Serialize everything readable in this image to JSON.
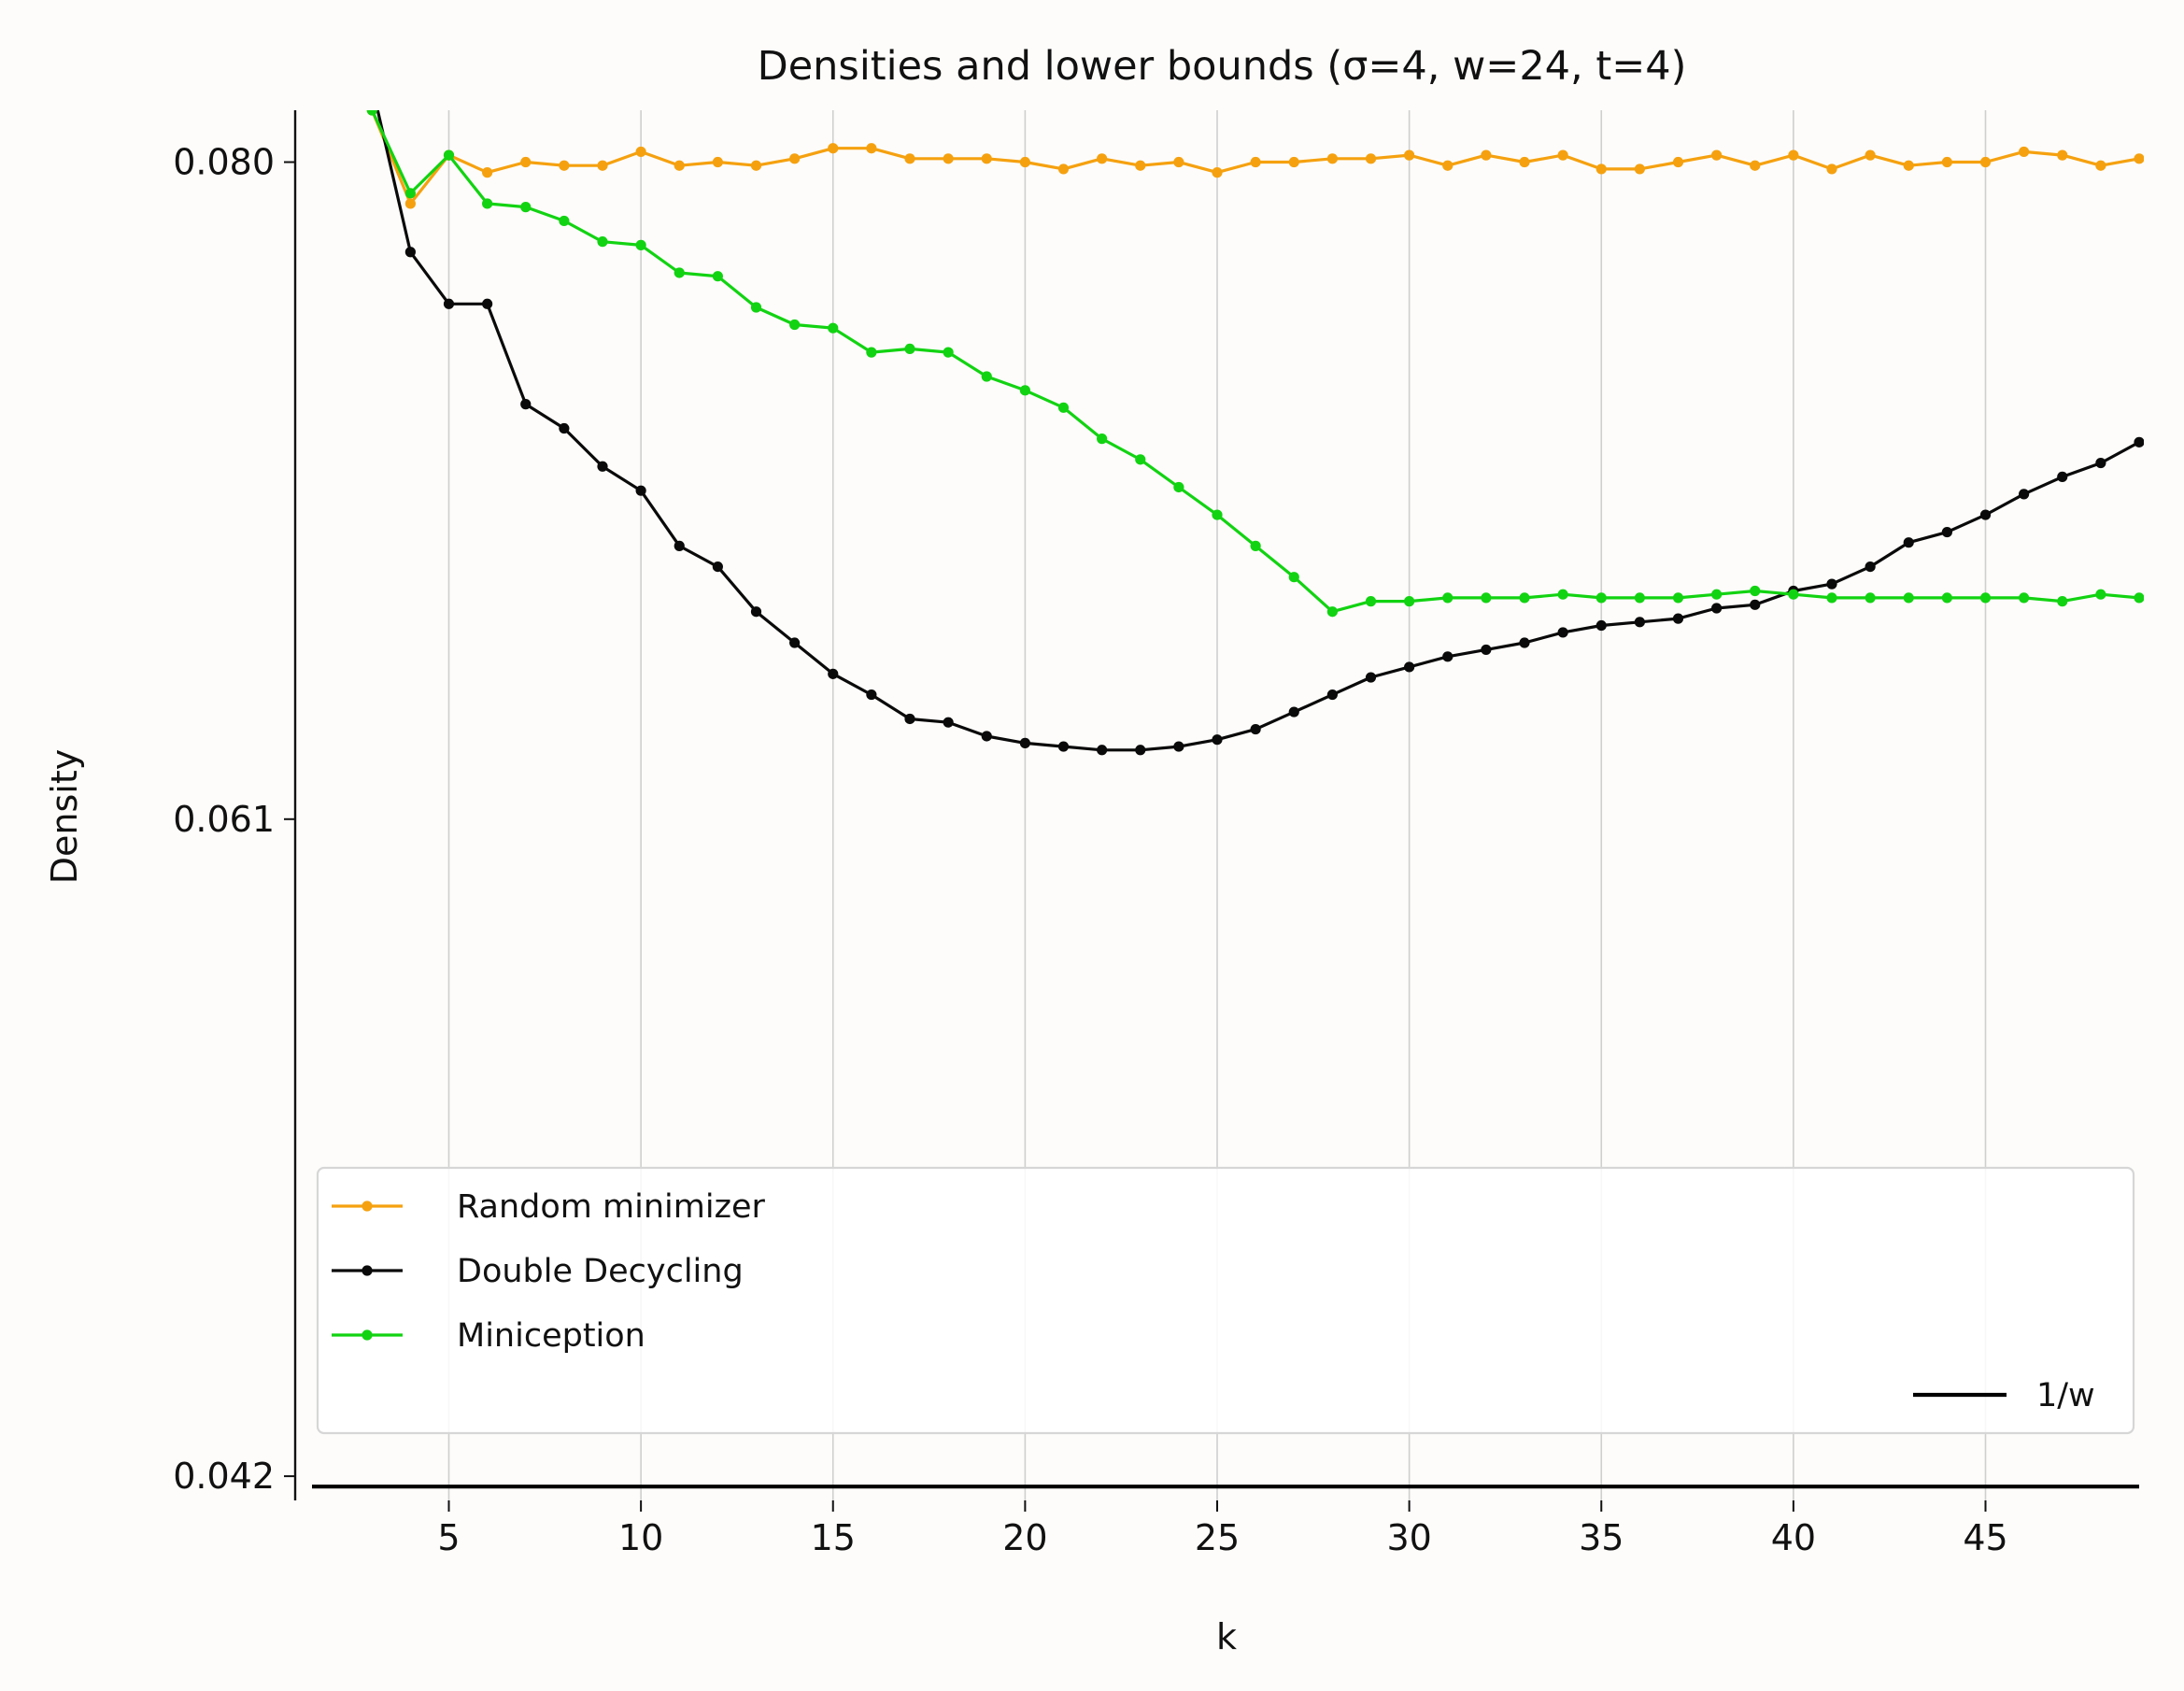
{
  "chart_data": {
    "type": "line",
    "title": "Densities and lower bounds (σ=4, w=24, t=4)",
    "xlabel": "k",
    "ylabel": "Density",
    "xlim": [
      1,
      49
    ],
    "ylim": [
      0.0413,
      0.0815
    ],
    "xticks": [
      5,
      10,
      15,
      20,
      25,
      30,
      35,
      40,
      45
    ],
    "yticks": [
      0.042,
      0.061,
      0.08
    ],
    "ytick_labels": [
      "0.042",
      "0.061",
      "0.080"
    ],
    "grid": "vertical",
    "legend_position": "lower-left",
    "x": [
      3,
      4,
      5,
      6,
      7,
      8,
      9,
      10,
      11,
      12,
      13,
      14,
      15,
      16,
      17,
      18,
      19,
      20,
      21,
      22,
      23,
      24,
      25,
      26,
      27,
      28,
      29,
      30,
      31,
      32,
      33,
      34,
      35,
      36,
      37,
      38,
      39,
      40,
      41,
      42,
      43,
      44,
      45,
      46,
      47,
      48,
      49
    ],
    "series": [
      {
        "name": "Random minimizer",
        "color": "#f5a10f",
        "values": [
          0.0815,
          0.0788,
          0.0802,
          0.0797,
          0.08,
          0.0799,
          0.0799,
          0.0803,
          0.0799,
          0.08,
          0.0799,
          0.0801,
          0.0804,
          0.0804,
          0.0801,
          0.0801,
          0.0801,
          0.08,
          0.0798,
          0.0801,
          0.0799,
          0.08,
          0.0797,
          0.08,
          0.08,
          0.0801,
          0.0801,
          0.0802,
          0.0799,
          0.0802,
          0.08,
          0.0802,
          0.0798,
          0.0798,
          0.08,
          0.0802,
          0.0799,
          0.0802,
          0.0798,
          0.0802,
          0.0799,
          0.08,
          0.08,
          0.0803,
          0.0802,
          0.0799,
          0.0801
        ]
      },
      {
        "name": "Double Decycling",
        "color": "#0a0a0a",
        "values": [
          0.0822,
          0.0774,
          0.0759,
          0.0759,
          0.073,
          0.0723,
          0.0712,
          0.0705,
          0.0689,
          0.0683,
          0.067,
          0.0661,
          0.0652,
          0.0646,
          0.0639,
          0.0638,
          0.0634,
          0.0632,
          0.0631,
          0.063,
          0.063,
          0.0631,
          0.0633,
          0.0636,
          0.0641,
          0.0646,
          0.0651,
          0.0654,
          0.0657,
          0.0659,
          0.0661,
          0.0664,
          0.0666,
          0.0667,
          0.0668,
          0.0671,
          0.0672,
          0.0676,
          0.0678,
          0.0683,
          0.069,
          0.0693,
          0.0698,
          0.0704,
          0.0709,
          0.0713,
          0.0719
        ]
      },
      {
        "name": "Miniception",
        "color": "#12d312",
        "values": [
          0.0815,
          0.0791,
          0.0802,
          0.0788,
          0.0787,
          0.0783,
          0.0777,
          0.0776,
          0.0768,
          0.0767,
          0.0758,
          0.0753,
          0.0752,
          0.0745,
          0.0746,
          0.0745,
          0.0738,
          0.0734,
          0.0729,
          0.072,
          0.0714,
          0.0706,
          0.0698,
          0.0689,
          0.068,
          0.067,
          0.0673,
          0.0673,
          0.0674,
          0.0674,
          0.0674,
          0.0675,
          0.0674,
          0.0674,
          0.0674,
          0.0675,
          0.0676,
          0.0675,
          0.0674,
          0.0674,
          0.0674,
          0.0674,
          0.0674,
          0.0674,
          0.0673,
          0.0675,
          0.0674
        ]
      },
      {
        "name": "1/w",
        "color": "#000000",
        "value": 0.0417
      }
    ]
  }
}
